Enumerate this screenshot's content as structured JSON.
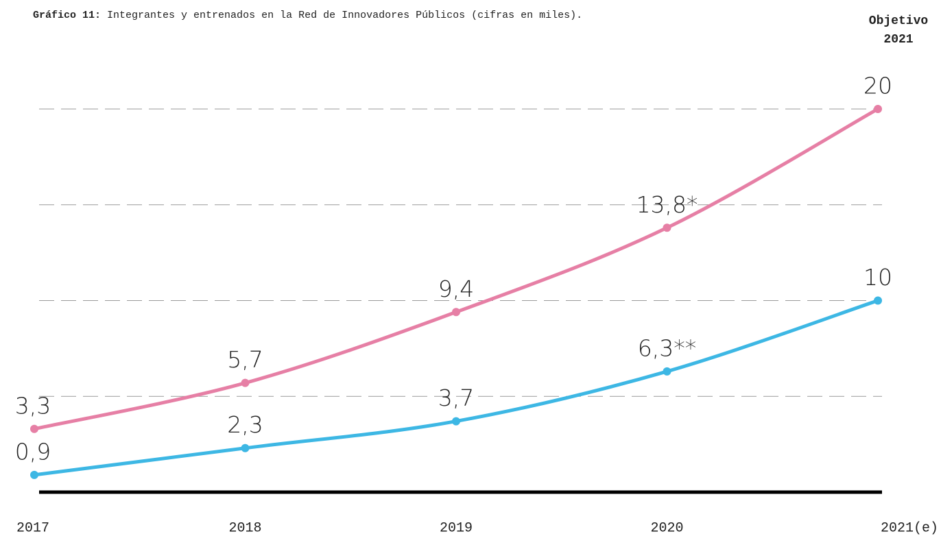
{
  "chart_data": {
    "type": "line",
    "title": {
      "label": "Gráfico 11:",
      "text": "Integrantes y entrenados en la Red de Innovadores Públicos (cifras en miles)."
    },
    "annotation": [
      "Objetivo",
      "2021"
    ],
    "categories": [
      "2017",
      "2018",
      "2019",
      "2020",
      "2021(e)"
    ],
    "series": [
      {
        "color": "#e67fa5",
        "values": [
          3.3,
          5.7,
          9.4,
          13.8,
          20
        ],
        "value_labels": [
          "3,3",
          "5,7",
          "9,4",
          "13,8*",
          "20"
        ]
      },
      {
        "color": "#3db7e4",
        "values": [
          0.9,
          2.3,
          3.7,
          6.3,
          10
        ],
        "value_labels": [
          "0,9",
          "2,3",
          "3,7",
          "6,3**",
          "10"
        ]
      }
    ],
    "ylim": [
      0,
      20
    ],
    "yticks": [
      5,
      10,
      15,
      20
    ],
    "grid": true
  }
}
